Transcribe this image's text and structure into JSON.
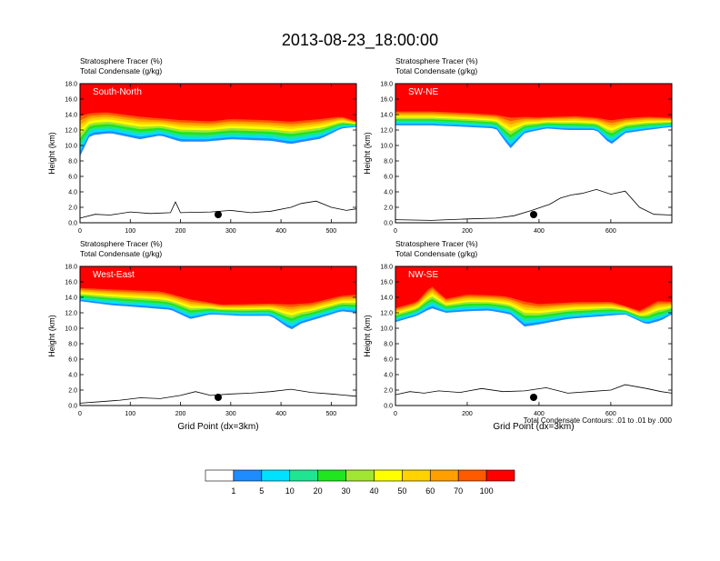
{
  "page": {
    "title": "2013-08-23_18:00:00",
    "contour_note": "Total Condensate Contours: .01 to .01 by .000"
  },
  "chart_data": [
    {
      "type": "heatmap",
      "panel": "South-North",
      "label_top": "Stratosphere Tracer   (%)",
      "label_bottom": "Total Condensate   (g/kg)",
      "ylabel": "Height (km)",
      "xlabel": "",
      "xlim": [
        0,
        550
      ],
      "ylim": [
        0,
        18
      ],
      "xticks": [
        0,
        100,
        200,
        300,
        400,
        500
      ],
      "yticks": [
        "0.0",
        "2.0",
        "4.0",
        "6.0",
        "8.0",
        "10.0",
        "12.0",
        "14.0",
        "16.0",
        "18.0"
      ],
      "marker_x": 275,
      "tracer_base_km": [
        [
          0,
          8.6
        ],
        [
          20,
          11.3
        ],
        [
          60,
          11.6
        ],
        [
          120,
          10.8
        ],
        [
          160,
          11.3
        ],
        [
          200,
          10.5
        ],
        [
          250,
          10.5
        ],
        [
          300,
          10.8
        ],
        [
          380,
          10.6
        ],
        [
          420,
          10.2
        ],
        [
          480,
          10.9
        ],
        [
          520,
          12.2
        ],
        [
          550,
          12.4
        ]
      ],
      "tracer_core_km": [
        [
          0,
          14.4
        ],
        [
          50,
          14.6
        ],
        [
          100,
          14.2
        ],
        [
          150,
          13.8
        ],
        [
          200,
          13.6
        ],
        [
          260,
          13.4
        ],
        [
          300,
          13.7
        ],
        [
          360,
          13.6
        ],
        [
          420,
          13.4
        ],
        [
          480,
          13.7
        ],
        [
          520,
          13.9
        ],
        [
          550,
          13.2
        ]
      ],
      "terrain_km": [
        [
          0,
          0.6
        ],
        [
          30,
          1.1
        ],
        [
          60,
          1.0
        ],
        [
          100,
          1.4
        ],
        [
          140,
          1.2
        ],
        [
          180,
          1.3
        ],
        [
          190,
          2.7
        ],
        [
          200,
          1.3
        ],
        [
          260,
          1.4
        ],
        [
          300,
          1.6
        ],
        [
          340,
          1.3
        ],
        [
          380,
          1.5
        ],
        [
          420,
          2.0
        ],
        [
          440,
          2.5
        ],
        [
          470,
          2.8
        ],
        [
          500,
          2.0
        ],
        [
          530,
          1.6
        ],
        [
          550,
          1.8
        ]
      ]
    },
    {
      "type": "heatmap",
      "panel": "SW-NE",
      "label_top": "Stratosphere Tracer   (%)",
      "label_bottom": "Total Condensate   (g/kg)",
      "ylabel": "Height (km)",
      "xlabel": "",
      "xlim": [
        0,
        770
      ],
      "ylim": [
        0,
        18
      ],
      "xticks": [
        0,
        200,
        400,
        600
      ],
      "yticks": [
        "0.0",
        "2.0",
        "4.0",
        "6.0",
        "8.0",
        "10.0",
        "12.0",
        "14.0",
        "16.0",
        "18.0"
      ],
      "marker_x": 385,
      "tracer_base_km": [
        [
          0,
          12.6
        ],
        [
          100,
          12.6
        ],
        [
          200,
          12.4
        ],
        [
          280,
          12.2
        ],
        [
          320,
          9.6
        ],
        [
          360,
          11.6
        ],
        [
          420,
          12.2
        ],
        [
          480,
          12.0
        ],
        [
          560,
          12.0
        ],
        [
          600,
          10.1
        ],
        [
          640,
          11.6
        ],
        [
          700,
          12.0
        ],
        [
          770,
          12.4
        ]
      ],
      "tracer_core_km": [
        [
          0,
          14.6
        ],
        [
          100,
          14.6
        ],
        [
          200,
          14.4
        ],
        [
          300,
          14.1
        ],
        [
          400,
          13.8
        ],
        [
          500,
          14.0
        ],
        [
          600,
          13.6
        ],
        [
          700,
          13.9
        ],
        [
          770,
          13.7
        ]
      ],
      "terrain_km": [
        [
          0,
          0.4
        ],
        [
          100,
          0.3
        ],
        [
          200,
          0.5
        ],
        [
          280,
          0.6
        ],
        [
          330,
          0.9
        ],
        [
          380,
          1.6
        ],
        [
          430,
          2.4
        ],
        [
          460,
          3.2
        ],
        [
          490,
          3.6
        ],
        [
          520,
          3.8
        ],
        [
          560,
          4.3
        ],
        [
          600,
          3.7
        ],
        [
          640,
          4.1
        ],
        [
          680,
          2.0
        ],
        [
          720,
          1.1
        ],
        [
          770,
          1.0
        ]
      ]
    },
    {
      "type": "heatmap",
      "panel": "West-East",
      "label_top": "Stratosphere Tracer   (%)",
      "label_bottom": "Total Condensate   (g/kg)",
      "ylabel": "Height (km)",
      "xlabel": "Grid Point (dx=3km)",
      "xlim": [
        0,
        550
      ],
      "ylim": [
        0,
        18
      ],
      "xticks": [
        0,
        100,
        200,
        300,
        400,
        500
      ],
      "yticks": [
        "0.0",
        "2.0",
        "4.0",
        "6.0",
        "8.0",
        "10.0",
        "12.0",
        "14.0",
        "16.0",
        "18.0"
      ],
      "marker_x": 275,
      "tracer_base_km": [
        [
          0,
          13.5
        ],
        [
          60,
          13.0
        ],
        [
          120,
          12.7
        ],
        [
          180,
          12.4
        ],
        [
          220,
          11.2
        ],
        [
          260,
          11.8
        ],
        [
          320,
          11.6
        ],
        [
          380,
          11.6
        ],
        [
          420,
          9.8
        ],
        [
          440,
          10.6
        ],
        [
          520,
          12.2
        ],
        [
          550,
          12.0
        ]
      ],
      "tracer_core_km": [
        [
          0,
          15.4
        ],
        [
          80,
          15.2
        ],
        [
          160,
          15.0
        ],
        [
          220,
          14.0
        ],
        [
          280,
          13.2
        ],
        [
          340,
          13.3
        ],
        [
          400,
          13.4
        ],
        [
          460,
          13.5
        ],
        [
          520,
          14.4
        ],
        [
          550,
          14.6
        ]
      ],
      "terrain_km": [
        [
          0,
          0.3
        ],
        [
          40,
          0.5
        ],
        [
          80,
          0.7
        ],
        [
          120,
          1.0
        ],
        [
          160,
          0.9
        ],
        [
          200,
          1.3
        ],
        [
          230,
          1.8
        ],
        [
          260,
          1.3
        ],
        [
          300,
          1.5
        ],
        [
          340,
          1.6
        ],
        [
          380,
          1.8
        ],
        [
          420,
          2.1
        ],
        [
          460,
          1.7
        ],
        [
          500,
          1.5
        ],
        [
          550,
          1.2
        ]
      ]
    },
    {
      "type": "heatmap",
      "panel": "NW-SE",
      "label_top": "Stratosphere Tracer   (%)",
      "label_bottom": "Total Condensate   (g/kg)",
      "ylabel": "Height (km)",
      "xlabel": "Grid Point (dx=3km)",
      "xlim": [
        0,
        770
      ],
      "ylim": [
        0,
        18
      ],
      "xticks": [
        0,
        200,
        400,
        600
      ],
      "yticks": [
        "0.0",
        "2.0",
        "4.0",
        "6.0",
        "8.0",
        "10.0",
        "12.0",
        "14.0",
        "16.0",
        "18.0"
      ],
      "marker_x": 385,
      "tracer_base_km": [
        [
          0,
          10.8
        ],
        [
          60,
          11.6
        ],
        [
          100,
          12.6
        ],
        [
          140,
          12.0
        ],
        [
          200,
          12.2
        ],
        [
          260,
          12.3
        ],
        [
          320,
          11.8
        ],
        [
          360,
          10.2
        ],
        [
          400,
          10.5
        ],
        [
          480,
          11.2
        ],
        [
          560,
          11.5
        ],
        [
          640,
          11.8
        ],
        [
          700,
          10.5
        ],
        [
          740,
          11.0
        ],
        [
          770,
          11.8
        ]
      ],
      "tracer_core_km": [
        [
          0,
          12.8
        ],
        [
          60,
          13.6
        ],
        [
          100,
          15.8
        ],
        [
          140,
          14.0
        ],
        [
          200,
          14.6
        ],
        [
          300,
          14.4
        ],
        [
          400,
          13.4
        ],
        [
          500,
          13.6
        ],
        [
          600,
          13.6
        ],
        [
          680,
          12.4
        ],
        [
          730,
          13.8
        ],
        [
          770,
          13.6
        ]
      ],
      "terrain_km": [
        [
          0,
          1.4
        ],
        [
          40,
          1.8
        ],
        [
          80,
          1.6
        ],
        [
          120,
          1.9
        ],
        [
          180,
          1.7
        ],
        [
          240,
          2.2
        ],
        [
          300,
          1.8
        ],
        [
          360,
          1.9
        ],
        [
          420,
          2.3
        ],
        [
          480,
          1.6
        ],
        [
          540,
          1.8
        ],
        [
          600,
          2.0
        ],
        [
          640,
          2.7
        ],
        [
          700,
          2.2
        ],
        [
          740,
          1.8
        ],
        [
          770,
          1.6
        ]
      ]
    }
  ],
  "colorbar": {
    "levels": [
      "1",
      "5",
      "10",
      "20",
      "30",
      "40",
      "50",
      "60",
      "70",
      "100"
    ],
    "colors": [
      "#ffffff",
      "#1e8cff",
      "#00e0ff",
      "#1fe592",
      "#1fe51f",
      "#a0e632",
      "#ffff00",
      "#ffd200",
      "#ffa000",
      "#ff5a00",
      "#ff0000"
    ]
  }
}
